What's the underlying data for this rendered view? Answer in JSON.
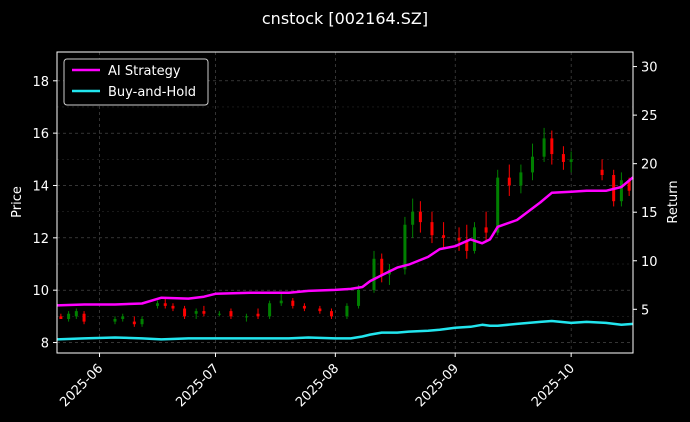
{
  "chart_data": {
    "type": "line",
    "title": "cnstock [002164.SZ]",
    "xlabel": "",
    "ylabel": "Price",
    "y2label": "Return",
    "ylim": [
      7.6,
      19.1
    ],
    "y2lim": [
      0.5,
      31.5
    ],
    "yticks": [
      8,
      10,
      12,
      14,
      16,
      18
    ],
    "y2ticks": [
      5,
      10,
      15,
      20,
      25,
      30
    ],
    "x_range": [
      "2025-05-21",
      "2025-10-17"
    ],
    "xticks": [
      "2025-06",
      "2025-07",
      "2025-08",
      "2025-09",
      "2025-10"
    ],
    "grid": true,
    "legend_position": "top-left",
    "colors": {
      "up": "#008000",
      "down": "#ff0000",
      "ai": "#ff00ff",
      "bh": "#22e5ee"
    },
    "series": [
      {
        "name": "AI Strategy",
        "axis": "right",
        "points": [
          [
            "2025-05-21",
            5.4
          ],
          [
            "2025-05-28",
            5.5
          ],
          [
            "2025-06-05",
            5.5
          ],
          [
            "2025-06-12",
            5.6
          ],
          [
            "2025-06-17",
            6.2
          ],
          [
            "2025-06-24",
            6.1
          ],
          [
            "2025-06-28",
            6.3
          ],
          [
            "2025-07-01",
            6.6
          ],
          [
            "2025-07-10",
            6.7
          ],
          [
            "2025-07-20",
            6.7
          ],
          [
            "2025-07-25",
            6.9
          ],
          [
            "2025-08-01",
            7.0
          ],
          [
            "2025-08-05",
            7.1
          ],
          [
            "2025-08-08",
            7.3
          ],
          [
            "2025-08-10",
            7.9
          ],
          [
            "2025-08-13",
            8.5
          ],
          [
            "2025-08-17",
            9.3
          ],
          [
            "2025-08-20",
            9.6
          ],
          [
            "2025-08-25",
            10.4
          ],
          [
            "2025-08-28",
            11.2
          ],
          [
            "2025-09-01",
            11.5
          ],
          [
            "2025-09-05",
            12.2
          ],
          [
            "2025-09-08",
            11.8
          ],
          [
            "2025-09-10",
            12.2
          ],
          [
            "2025-09-12",
            13.5
          ],
          [
            "2025-09-17",
            14.2
          ],
          [
            "2025-09-20",
            15.1
          ],
          [
            "2025-09-23",
            16.0
          ],
          [
            "2025-09-26",
            17.0
          ],
          [
            "2025-10-01",
            17.1
          ],
          [
            "2025-10-05",
            17.2
          ],
          [
            "2025-10-10",
            17.2
          ],
          [
            "2025-10-14",
            17.6
          ],
          [
            "2025-10-17",
            18.6
          ]
        ]
      },
      {
        "name": "Buy-and-Hold",
        "axis": "right",
        "points": [
          [
            "2025-05-21",
            1.9
          ],
          [
            "2025-05-28",
            2.0
          ],
          [
            "2025-06-05",
            2.1
          ],
          [
            "2025-06-12",
            2.0
          ],
          [
            "2025-06-17",
            1.9
          ],
          [
            "2025-06-24",
            2.0
          ],
          [
            "2025-07-01",
            2.0
          ],
          [
            "2025-07-10",
            2.0
          ],
          [
            "2025-07-20",
            2.0
          ],
          [
            "2025-07-25",
            2.1
          ],
          [
            "2025-08-01",
            2.0
          ],
          [
            "2025-08-05",
            2.0
          ],
          [
            "2025-08-08",
            2.2
          ],
          [
            "2025-08-10",
            2.4
          ],
          [
            "2025-08-13",
            2.6
          ],
          [
            "2025-08-17",
            2.6
          ],
          [
            "2025-08-20",
            2.7
          ],
          [
            "2025-08-25",
            2.8
          ],
          [
            "2025-08-28",
            2.9
          ],
          [
            "2025-09-01",
            3.1
          ],
          [
            "2025-09-05",
            3.2
          ],
          [
            "2025-09-08",
            3.4
          ],
          [
            "2025-09-10",
            3.3
          ],
          [
            "2025-09-12",
            3.3
          ],
          [
            "2025-09-17",
            3.5
          ],
          [
            "2025-09-20",
            3.6
          ],
          [
            "2025-09-23",
            3.7
          ],
          [
            "2025-09-26",
            3.8
          ],
          [
            "2025-10-01",
            3.6
          ],
          [
            "2025-10-05",
            3.7
          ],
          [
            "2025-10-10",
            3.6
          ],
          [
            "2025-10-14",
            3.4
          ],
          [
            "2025-10-17",
            3.5
          ]
        ]
      }
    ],
    "candles": [
      [
        "2025-05-22",
        9.0,
        9.1,
        8.9,
        8.9
      ],
      [
        "2025-05-24",
        8.9,
        9.2,
        8.8,
        9.1
      ],
      [
        "2025-05-26",
        9.0,
        9.3,
        8.9,
        9.2
      ],
      [
        "2025-05-28",
        9.1,
        9.2,
        8.7,
        8.8
      ],
      [
        "2025-06-05",
        8.8,
        9.0,
        8.7,
        8.9
      ],
      [
        "2025-06-07",
        8.9,
        9.1,
        8.8,
        9.0
      ],
      [
        "2025-06-10",
        8.8,
        9.0,
        8.6,
        8.7
      ],
      [
        "2025-06-12",
        8.7,
        9.0,
        8.6,
        8.9
      ],
      [
        "2025-06-16",
        9.4,
        9.6,
        9.3,
        9.5
      ],
      [
        "2025-06-18",
        9.5,
        9.7,
        9.3,
        9.4
      ],
      [
        "2025-06-20",
        9.4,
        9.5,
        9.2,
        9.3
      ],
      [
        "2025-06-23",
        9.3,
        9.4,
        8.9,
        9.0
      ],
      [
        "2025-06-26",
        9.1,
        9.3,
        8.9,
        9.2
      ],
      [
        "2025-06-28",
        9.2,
        9.4,
        9.0,
        9.1
      ],
      [
        "2025-07-02",
        9.1,
        9.2,
        9.0,
        9.1
      ],
      [
        "2025-07-05",
        9.2,
        9.3,
        8.9,
        9.0
      ],
      [
        "2025-07-09",
        9.0,
        9.1,
        8.8,
        9.0
      ],
      [
        "2025-07-12",
        9.1,
        9.3,
        8.9,
        9.0
      ],
      [
        "2025-07-15",
        9.0,
        9.6,
        8.9,
        9.5
      ],
      [
        "2025-07-18",
        9.5,
        9.9,
        9.4,
        9.6
      ],
      [
        "2025-07-21",
        9.6,
        9.7,
        9.3,
        9.4
      ],
      [
        "2025-07-24",
        9.4,
        9.5,
        9.2,
        9.3
      ],
      [
        "2025-07-28",
        9.3,
        9.4,
        9.1,
        9.2
      ],
      [
        "2025-07-31",
        9.2,
        9.3,
        8.9,
        9.0
      ],
      [
        "2025-08-04",
        9.0,
        9.5,
        8.9,
        9.4
      ],
      [
        "2025-08-07",
        9.4,
        10.2,
        9.3,
        10.0
      ],
      [
        "2025-08-11",
        10.0,
        11.5,
        9.9,
        11.2
      ],
      [
        "2025-08-13",
        11.2,
        11.4,
        10.3,
        10.6
      ],
      [
        "2025-08-15",
        10.6,
        11.0,
        10.2,
        10.8
      ],
      [
        "2025-08-19",
        10.8,
        12.8,
        10.6,
        12.5
      ],
      [
        "2025-08-21",
        12.5,
        13.5,
        12.0,
        13.0
      ],
      [
        "2025-08-23",
        13.0,
        13.4,
        12.2,
        12.6
      ],
      [
        "2025-08-26",
        12.6,
        13.0,
        11.8,
        12.1
      ],
      [
        "2025-08-29",
        12.1,
        12.6,
        11.6,
        12.0
      ],
      [
        "2025-09-02",
        12.0,
        12.4,
        11.5,
        11.9
      ],
      [
        "2025-09-04",
        11.9,
        12.5,
        11.2,
        11.5
      ],
      [
        "2025-09-06",
        11.5,
        12.6,
        11.4,
        12.4
      ],
      [
        "2025-09-09",
        12.4,
        13.0,
        11.9,
        12.2
      ],
      [
        "2025-09-12",
        12.2,
        14.6,
        12.1,
        14.3
      ],
      [
        "2025-09-15",
        14.3,
        14.8,
        13.6,
        14.0
      ],
      [
        "2025-09-18",
        14.0,
        14.8,
        13.7,
        14.5
      ],
      [
        "2025-09-21",
        14.5,
        15.6,
        14.2,
        15.1
      ],
      [
        "2025-09-24",
        15.1,
        16.2,
        14.9,
        15.8
      ],
      [
        "2025-09-26",
        15.8,
        16.1,
        14.8,
        15.2
      ],
      [
        "2025-09-29",
        15.2,
        15.5,
        14.6,
        14.9
      ],
      [
        "2025-10-01",
        14.9,
        15.3,
        14.5,
        15.0
      ],
      [
        "2025-10-09",
        14.6,
        15.0,
        14.2,
        14.4
      ],
      [
        "2025-10-12",
        14.4,
        14.6,
        13.2,
        13.4
      ],
      [
        "2025-10-14",
        13.4,
        14.5,
        13.2,
        14.2
      ],
      [
        "2025-10-16",
        14.2,
        14.3,
        13.6,
        13.8
      ]
    ]
  }
}
